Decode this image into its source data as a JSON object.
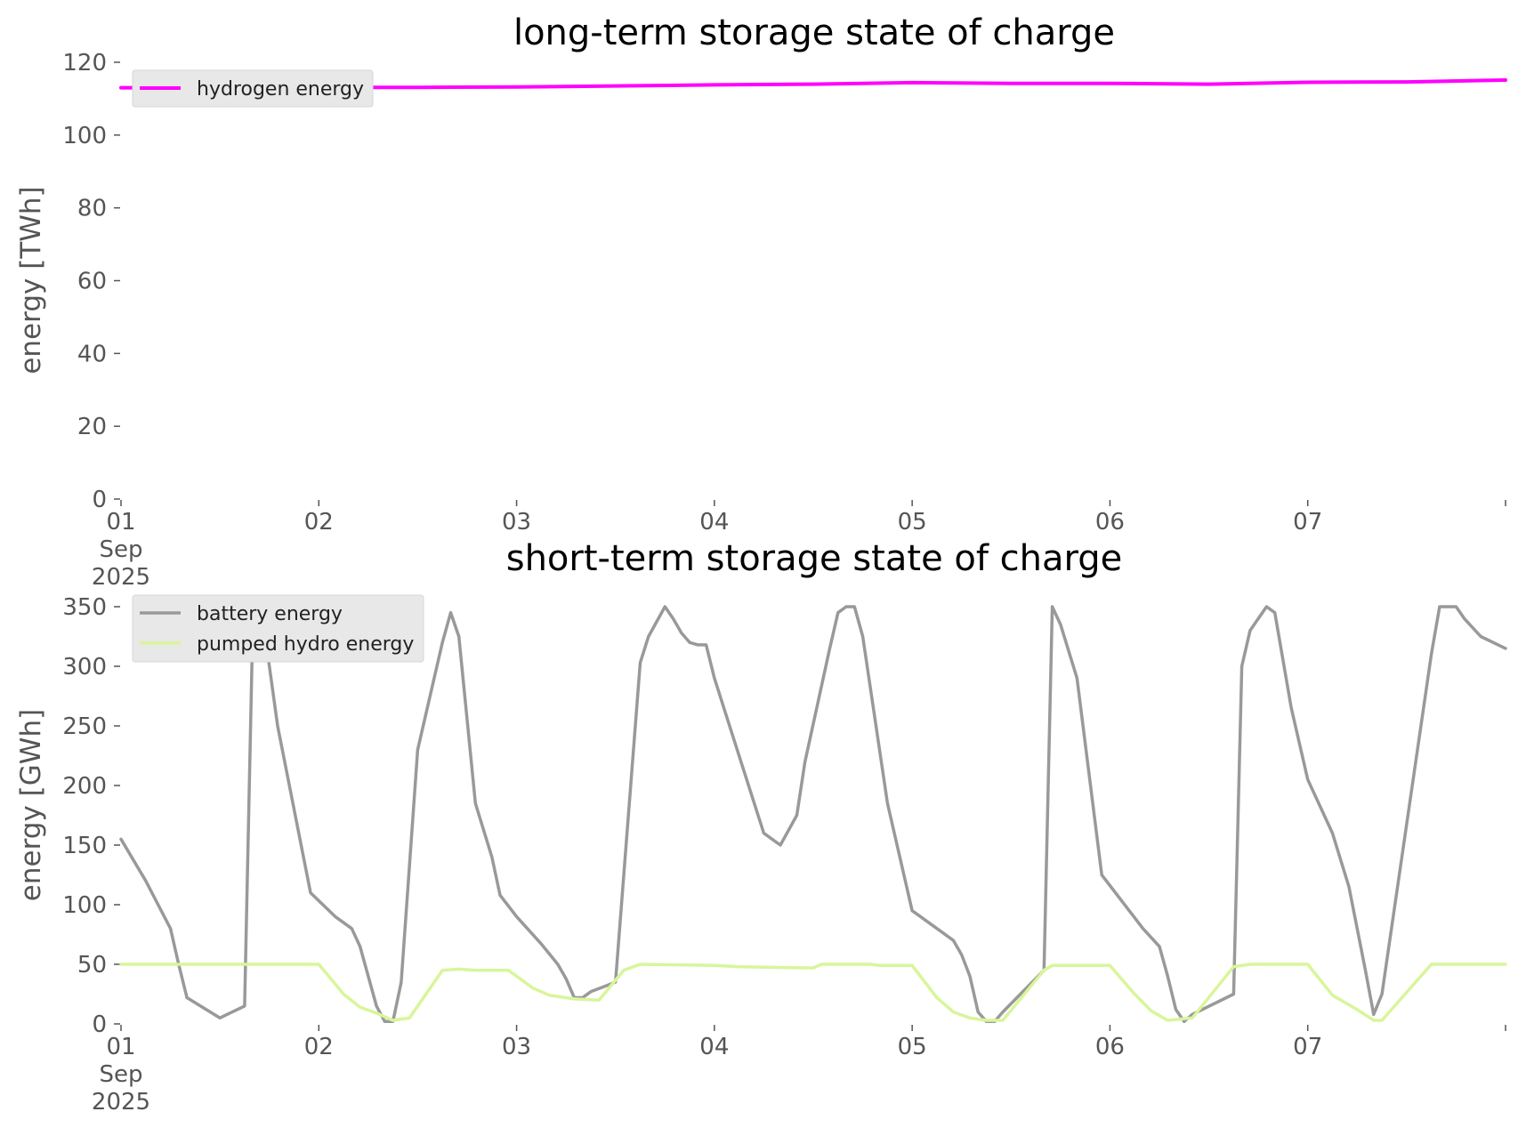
{
  "chart_data": [
    {
      "type": "line",
      "title": "long-term storage state of charge",
      "ylabel": "energy [TWh]",
      "xlabel": "",
      "ylim": [
        0,
        120
      ],
      "yticks": [
        0,
        20,
        40,
        60,
        80,
        100,
        120
      ],
      "xlim": [
        "2025-09-01 00:00",
        "2025-09-08 00:00"
      ],
      "xticks": [
        "01\nSep\n2025",
        "02",
        "03",
        "04",
        "05",
        "06",
        "07"
      ],
      "grid": false,
      "legend_position": "top-left",
      "series": [
        {
          "name": "hydrogen energy",
          "color": "#ff00ff",
          "x": [
            "2025-09-01 00:00",
            "2025-09-01 12:00",
            "2025-09-02 00:00",
            "2025-09-02 12:00",
            "2025-09-03 00:00",
            "2025-09-03 12:00",
            "2025-09-04 00:00",
            "2025-09-04 12:00",
            "2025-09-05 00:00",
            "2025-09-05 12:00",
            "2025-09-06 00:00",
            "2025-09-06 12:00",
            "2025-09-07 00:00",
            "2025-09-07 12:00",
            "2025-09-08 00:00"
          ],
          "y": [
            113.0,
            113.0,
            113.1,
            113.1,
            113.2,
            113.5,
            113.8,
            114.0,
            114.4,
            114.2,
            114.2,
            114.0,
            114.5,
            114.6,
            115.1
          ]
        }
      ]
    },
    {
      "type": "line",
      "title": "short-term storage state of charge",
      "ylabel": "energy [GWh]",
      "xlabel": "",
      "ylim": [
        0,
        350
      ],
      "yticks": [
        0,
        50,
        100,
        150,
        200,
        250,
        300,
        350
      ],
      "xlim": [
        "2025-09-01 00:00",
        "2025-09-08 00:00"
      ],
      "xticks": [
        "01\nSep\n2025",
        "02",
        "03",
        "04",
        "05",
        "06",
        "07"
      ],
      "grid": false,
      "legend_position": "top-left",
      "series": [
        {
          "name": "battery energy",
          "color": "#999999",
          "x": [
            "2025-09-01 00:00",
            "2025-09-01 03:00",
            "2025-09-01 06:00",
            "2025-09-01 07:00",
            "2025-09-01 08:00",
            "2025-09-01 12:00",
            "2025-09-01 15:00",
            "2025-09-01 16:00",
            "2025-09-01 17:00",
            "2025-09-01 19:00",
            "2025-09-01 21:00",
            "2025-09-01 23:00",
            "2025-09-02 02:00",
            "2025-09-02 04:00",
            "2025-09-02 05:00",
            "2025-09-02 07:00",
            "2025-09-02 08:00",
            "2025-09-02 09:00",
            "2025-09-02 10:00",
            "2025-09-02 12:00",
            "2025-09-02 15:00",
            "2025-09-02 16:00",
            "2025-09-02 17:00",
            "2025-09-02 19:00",
            "2025-09-02 21:00",
            "2025-09-02 22:00",
            "2025-09-03 00:00",
            "2025-09-03 03:00",
            "2025-09-03 05:00",
            "2025-09-03 06:00",
            "2025-09-03 07:00",
            "2025-09-03 08:00",
            "2025-09-03 09:00",
            "2025-09-03 12:00",
            "2025-09-03 15:00",
            "2025-09-03 16:00",
            "2025-09-03 18:00",
            "2025-09-03 19:00",
            "2025-09-03 20:00",
            "2025-09-03 21:00",
            "2025-09-03 22:00",
            "2025-09-03 23:00",
            "2025-09-04 00:00",
            "2025-09-04 03:00",
            "2025-09-04 06:00",
            "2025-09-04 07:00",
            "2025-09-04 08:00",
            "2025-09-04 10:00",
            "2025-09-04 11:00",
            "2025-09-04 14:00",
            "2025-09-04 15:00",
            "2025-09-04 16:00",
            "2025-09-04 17:00",
            "2025-09-04 18:00",
            "2025-09-04 21:00",
            "2025-09-05 00:00",
            "2025-09-05 02:00",
            "2025-09-05 05:00",
            "2025-09-05 06:00",
            "2025-09-05 07:00",
            "2025-09-05 08:00",
            "2025-09-05 09:00",
            "2025-09-05 10:00",
            "2025-09-05 11:00",
            "2025-09-05 16:00",
            "2025-09-05 17:00",
            "2025-09-05 18:00",
            "2025-09-05 20:00",
            "2025-09-05 23:00",
            "2025-09-06 04:00",
            "2025-09-06 06:00",
            "2025-09-06 07:00",
            "2025-09-06 08:00",
            "2025-09-06 09:00",
            "2025-09-06 10:00",
            "2025-09-06 15:00",
            "2025-09-06 16:00",
            "2025-09-06 17:00",
            "2025-09-06 19:00",
            "2025-09-06 20:00",
            "2025-09-06 22:00",
            "2025-09-07 00:00",
            "2025-09-07 03:00",
            "2025-09-07 05:00",
            "2025-09-07 07:00",
            "2025-09-07 08:00",
            "2025-09-07 09:00",
            "2025-09-07 15:00",
            "2025-09-07 16:00",
            "2025-09-07 18:00",
            "2025-09-07 19:00",
            "2025-09-07 21:00",
            "2025-09-08 00:00"
          ],
          "y": [
            155,
            120,
            80,
            50,
            22,
            5,
            15,
            340,
            350,
            250,
            180,
            110,
            90,
            80,
            65,
            15,
            2,
            2,
            35,
            230,
            320,
            345,
            325,
            185,
            140,
            108,
            90,
            67,
            50,
            38,
            22,
            22,
            27,
            35,
            303,
            325,
            350,
            340,
            328,
            320,
            318,
            318,
            290,
            225,
            160,
            155,
            150,
            175,
            220,
            315,
            345,
            350,
            350,
            325,
            185,
            95,
            85,
            70,
            58,
            40,
            10,
            2,
            2,
            10,
            45,
            350,
            335,
            290,
            125,
            80,
            65,
            40,
            12,
            2,
            8,
            25,
            300,
            330,
            350,
            345,
            265,
            205,
            160,
            115,
            45,
            8,
            25,
            310,
            350,
            350,
            340,
            325,
            315
          ],
          "y_note": ""
        },
        {
          "name": "pumped hydro energy",
          "color": "#d9f59a",
          "x": [
            "2025-09-01 00:00",
            "2025-09-02 00:00",
            "2025-09-02 03:00",
            "2025-09-02 05:00",
            "2025-09-02 07:00",
            "2025-09-02 09:00",
            "2025-09-02 11:00",
            "2025-09-02 15:00",
            "2025-09-02 17:00",
            "2025-09-02 19:00",
            "2025-09-02 23:00",
            "2025-09-03 02:00",
            "2025-09-03 04:00",
            "2025-09-03 07:00",
            "2025-09-03 10:00",
            "2025-09-03 13:00",
            "2025-09-03 15:00",
            "2025-09-04 00:00",
            "2025-09-04 03:00",
            "2025-09-04 11:00",
            "2025-09-04 12:00",
            "2025-09-04 13:00",
            "2025-09-04 19:00",
            "2025-09-04 20:00",
            "2025-09-05 00:00",
            "2025-09-05 03:00",
            "2025-09-05 05:00",
            "2025-09-05 07:00",
            "2025-09-05 09:00",
            "2025-09-05 11:00",
            "2025-09-05 16:00",
            "2025-09-05 17:00",
            "2025-09-06 00:00",
            "2025-09-06 03:00",
            "2025-09-06 05:00",
            "2025-09-06 07:00",
            "2025-09-06 10:00",
            "2025-09-06 15:00",
            "2025-09-06 17:00",
            "2025-09-07 00:00",
            "2025-09-07 03:00",
            "2025-09-07 06:00",
            "2025-09-07 08:00",
            "2025-09-07 09:00",
            "2025-09-07 15:00",
            "2025-09-08 00:00"
          ],
          "y": [
            50,
            50,
            25,
            14,
            9,
            3,
            5,
            45,
            46,
            45,
            45,
            30,
            24,
            21,
            20,
            45,
            50,
            49,
            48,
            47,
            47,
            50,
            50,
            49,
            49,
            22,
            10,
            5,
            3,
            3,
            45,
            49,
            49,
            25,
            11,
            3,
            5,
            48,
            50,
            50,
            24,
            12,
            3,
            3,
            50,
            50
          ]
        }
      ]
    }
  ]
}
